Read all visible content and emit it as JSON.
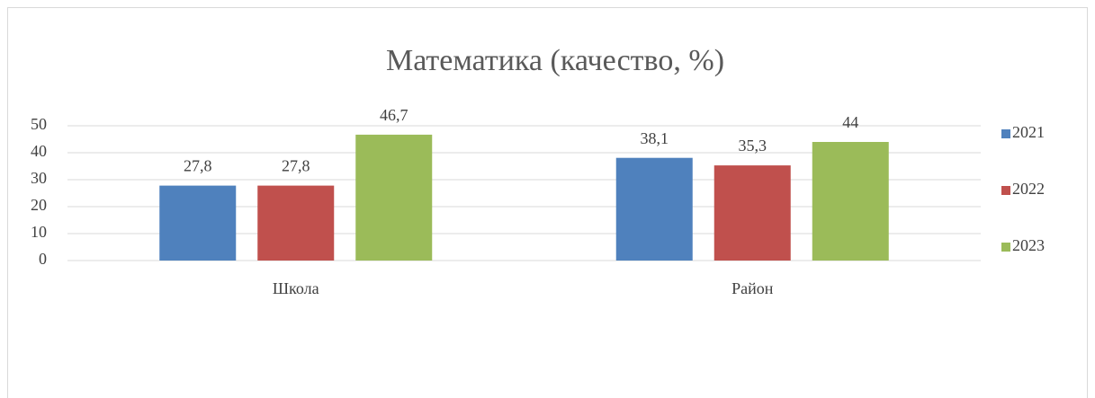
{
  "chart_data": {
    "type": "bar",
    "title": "Математика (качество, %)",
    "categories": [
      "Школа",
      "Район"
    ],
    "series": [
      {
        "name": "2021",
        "color": "#4f81bd",
        "values": [
          27.8,
          38.1
        ],
        "value_labels": [
          "27,8",
          "38,1"
        ]
      },
      {
        "name": "2022",
        "color": "#c0504d",
        "values": [
          27.8,
          35.3
        ],
        "value_labels": [
          "27,8",
          "35,3"
        ]
      },
      {
        "name": "2023",
        "color": "#9bbb59",
        "values": [
          46.7,
          44
        ],
        "value_labels": [
          "46,7",
          "44"
        ]
      }
    ],
    "ylim": [
      0,
      50
    ],
    "yticks": [
      0,
      10,
      20,
      30,
      40,
      50
    ],
    "grid": true,
    "legend": "right"
  }
}
